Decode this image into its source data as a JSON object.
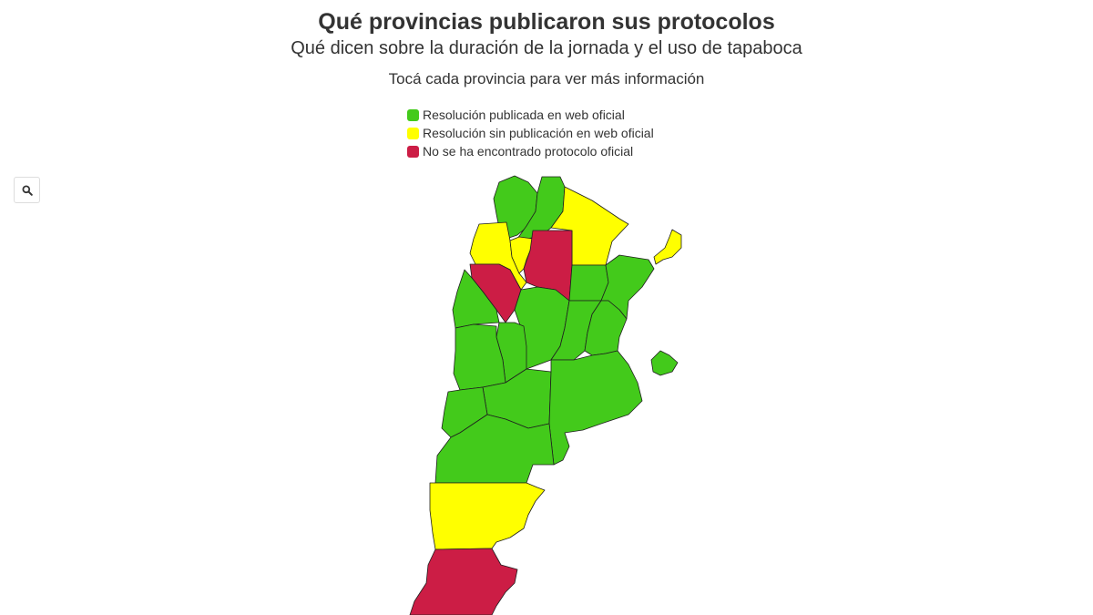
{
  "header": {
    "title": "Qué provincias publicaron sus protocolos",
    "subtitle": "Qué dicen sobre la duración de la jornada y el uso de tapaboca",
    "instruction": "Tocá cada provincia para ver más información"
  },
  "legend": [
    {
      "label": "Resolución publicada en web oficial",
      "color": "#43ca1b"
    },
    {
      "label": "Resolución sin publicación en web oficial",
      "color": "#ffff00"
    },
    {
      "label": "No se ha encontrado protocolo oficial",
      "color": "#cc1d45"
    }
  ],
  "controls": {
    "zoom_icon": "search-icon"
  },
  "map": {
    "provinces_by_status": {
      "published": 19,
      "unpublished": 4,
      "not_found": 3
    }
  }
}
